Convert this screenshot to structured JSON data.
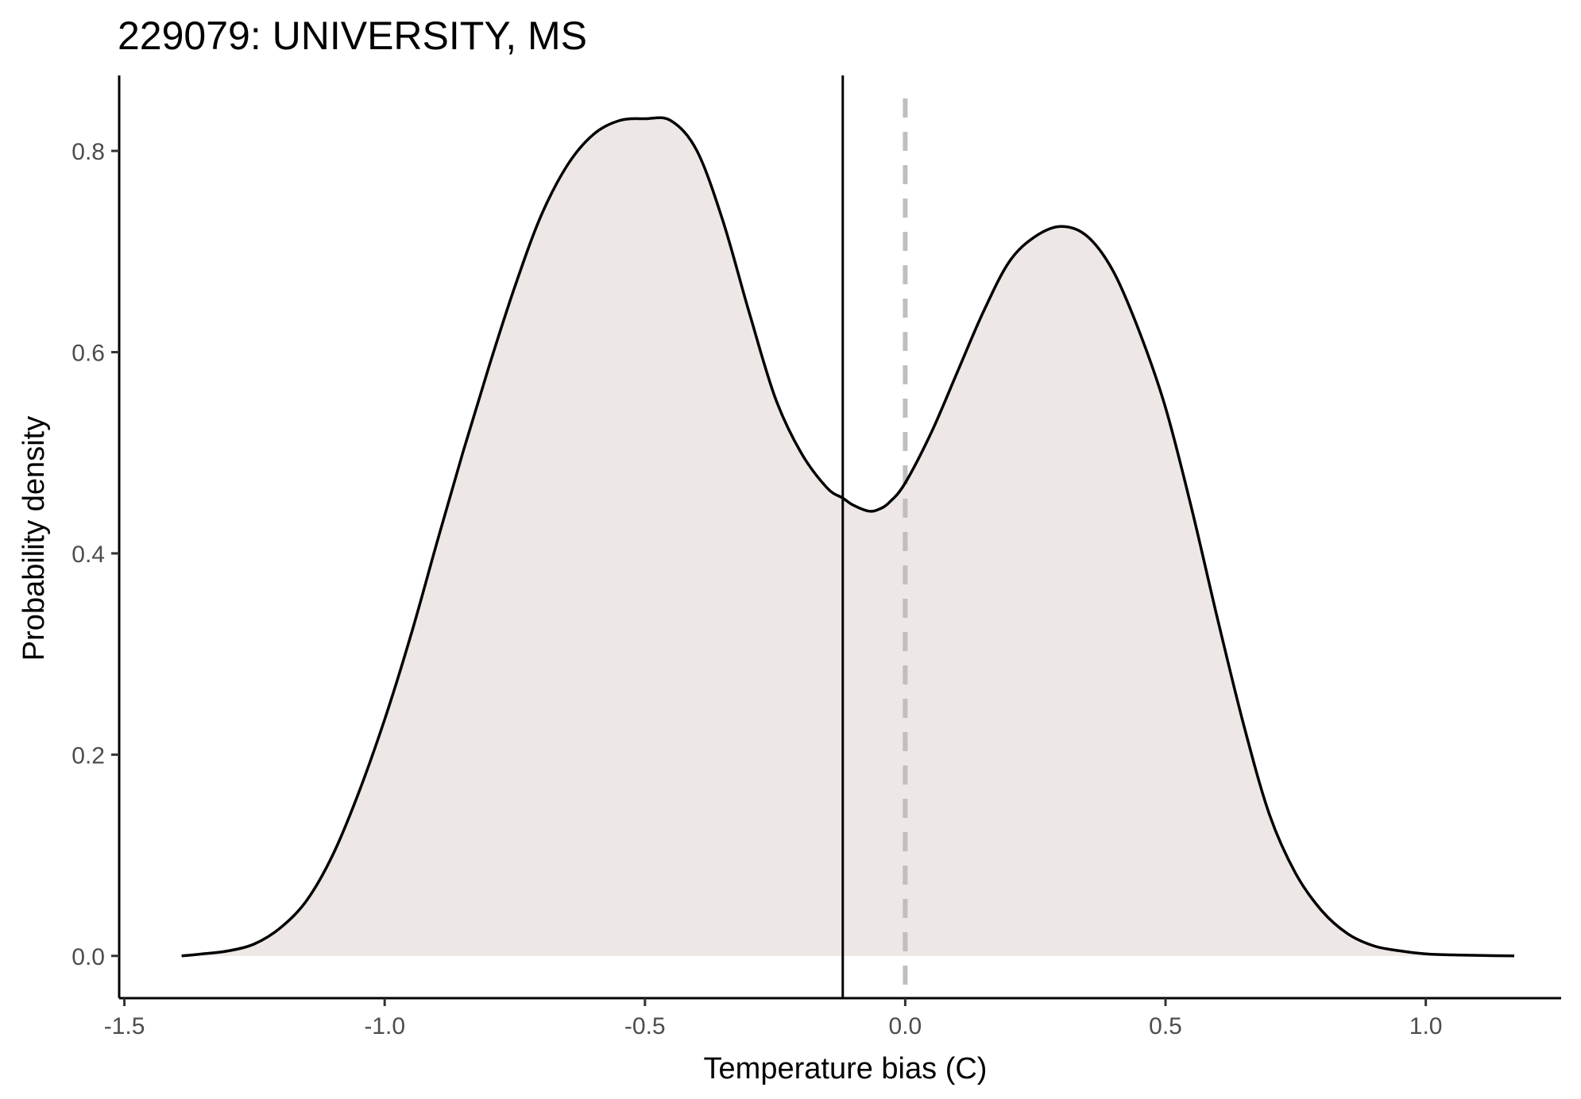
{
  "chart_data": {
    "type": "area",
    "title": "229079: UNIVERSITY, MS",
    "xlabel": "Temperature bias (C)",
    "ylabel": "Probability density",
    "xlim": [
      -1.51,
      1.26
    ],
    "ylim": [
      -0.042,
      0.875
    ],
    "x_ticks": [
      -1.5,
      -1.0,
      -0.5,
      0.0,
      0.5,
      1.0
    ],
    "x_tick_labels": [
      "-1.5",
      "-1.0",
      "-0.5",
      "0.0",
      "0.5",
      "1.0"
    ],
    "y_ticks": [
      0.0,
      0.2,
      0.4,
      0.6,
      0.8
    ],
    "y_tick_labels": [
      "0.0",
      "0.2",
      "0.4",
      "0.6",
      "0.8"
    ],
    "grid": false,
    "legend": "none",
    "fill_color": "#ede7e5",
    "line_color": "#000000",
    "series": [
      {
        "x": [
          -1.39,
          -1.35,
          -1.3,
          -1.25,
          -1.2,
          -1.15,
          -1.1,
          -1.05,
          -1.0,
          -0.95,
          -0.9,
          -0.85,
          -0.8,
          -0.75,
          -0.7,
          -0.65,
          -0.6,
          -0.55,
          -0.5,
          -0.45,
          -0.4,
          -0.35,
          -0.3,
          -0.25,
          -0.2,
          -0.15,
          -0.12,
          -0.1,
          -0.07,
          -0.05,
          -0.03,
          0.0,
          0.05,
          0.1,
          0.15,
          0.2,
          0.25,
          0.3,
          0.35,
          0.4,
          0.45,
          0.5,
          0.55,
          0.6,
          0.65,
          0.7,
          0.75,
          0.8,
          0.85,
          0.9,
          0.95,
          1.0,
          1.05,
          1.1,
          1.17
        ],
        "y": [
          0.0,
          0.002,
          0.005,
          0.012,
          0.028,
          0.055,
          0.1,
          0.162,
          0.235,
          0.318,
          0.41,
          0.5,
          0.585,
          0.665,
          0.735,
          0.785,
          0.816,
          0.83,
          0.832,
          0.83,
          0.8,
          0.73,
          0.64,
          0.555,
          0.5,
          0.465,
          0.455,
          0.448,
          0.442,
          0.444,
          0.451,
          0.47,
          0.52,
          0.58,
          0.64,
          0.69,
          0.715,
          0.725,
          0.715,
          0.68,
          0.62,
          0.545,
          0.445,
          0.335,
          0.23,
          0.14,
          0.082,
          0.045,
          0.022,
          0.01,
          0.005,
          0.002,
          0.001,
          0.0005,
          0.0
        ]
      }
    ],
    "reference_lines": [
      {
        "x": -0.12,
        "style": "solid",
        "color": "#000000"
      },
      {
        "x": 0.0,
        "style": "dashed",
        "color": "#bfbfbf"
      }
    ]
  }
}
